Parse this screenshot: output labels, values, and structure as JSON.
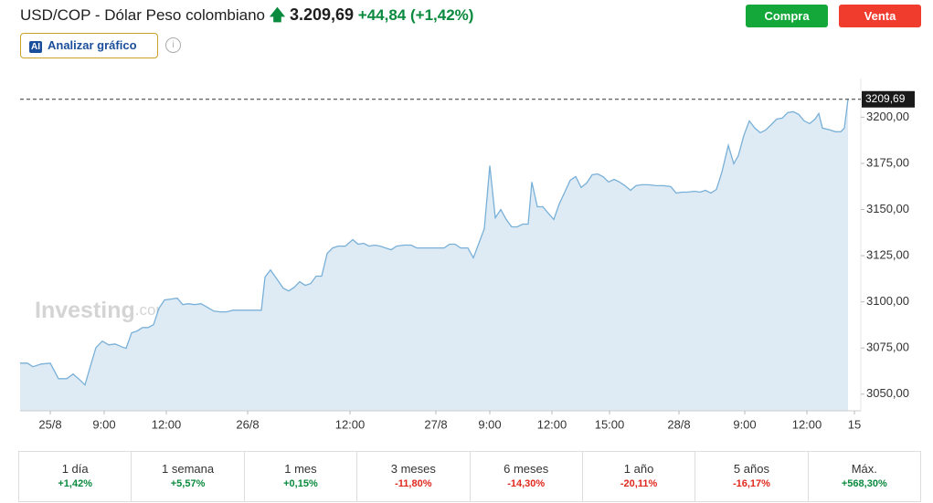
{
  "header": {
    "title": "USD/COP - Dólar Peso colombiano",
    "price": "3.209,69",
    "change": "+44,84",
    "change_pct": "(+1,42%)",
    "buy": "Compra",
    "sell": "Venta",
    "ai_icon": "AI",
    "analyze": "Analizar gráfico",
    "info": "i"
  },
  "chart_data": {
    "type": "area",
    "color": "#79b0d8",
    "fill": "#deebf5",
    "watermark": [
      "Investing",
      ".com"
    ],
    "current_price": {
      "value": 3209.69,
      "label": "3209,69"
    },
    "xlim": [
      0,
      92
    ],
    "xticks": [
      {
        "value": 3.3,
        "label": "25/8"
      },
      {
        "value": 9.2,
        "label": "9:00"
      },
      {
        "value": 16.0,
        "label": "12:00"
      },
      {
        "value": 24.9,
        "label": "26/8"
      },
      {
        "value": 36.1,
        "label": "12:00"
      },
      {
        "value": 45.5,
        "label": "27/8"
      },
      {
        "value": 51.4,
        "label": "9:00"
      },
      {
        "value": 58.2,
        "label": "12:00"
      },
      {
        "value": 64.5,
        "label": "15:00"
      },
      {
        "value": 72.1,
        "label": "28/8"
      },
      {
        "value": 79.3,
        "label": "9:00"
      },
      {
        "value": 86.1,
        "label": "12:00"
      },
      {
        "value": 91.3,
        "label": "15"
      }
    ],
    "ylim": [
      3041,
      3216
    ],
    "yticks": [
      {
        "value": 3050,
        "label": "3050,00"
      },
      {
        "value": 3075,
        "label": "3075,00"
      },
      {
        "value": 3100,
        "label": "3100,00"
      },
      {
        "value": 3125,
        "label": "3125,00"
      },
      {
        "value": 3150,
        "label": "3150,00"
      },
      {
        "value": 3175,
        "label": "3175,00"
      },
      {
        "value": 3200,
        "label": "3200,00"
      }
    ],
    "x": [
      0,
      0.8,
      1.4,
      2.3,
      3.3,
      4.2,
      5.1,
      5.8,
      6.5,
      7.1,
      7.7,
      8.3,
      9,
      9.7,
      10.4,
      11.1,
      11.6,
      12.2,
      12.8,
      13.4,
      14,
      14.6,
      15.2,
      15.8,
      16.5,
      17.2,
      17.8,
      18.4,
      19.1,
      19.8,
      20.5,
      21.2,
      21.9,
      22.6,
      23.3,
      24,
      24.8,
      25.6,
      26.4,
      26.8,
      27.4,
      28.1,
      28.8,
      29.4,
      30,
      30.6,
      31.2,
      31.8,
      32.4,
      33,
      33.6,
      34.2,
      34.8,
      35.6,
      36.4,
      37,
      37.6,
      38.2,
      38.8,
      39.4,
      40,
      40.6,
      41.2,
      42,
      42.8,
      43.4,
      44.2,
      45,
      45.8,
      46.4,
      47,
      47.6,
      48.2,
      49,
      49.6,
      50.2,
      50.8,
      51.4,
      52,
      52.6,
      53.2,
      53.8,
      54.4,
      55,
      55.6,
      56,
      56.6,
      57.2,
      57.8,
      58.4,
      59,
      59.6,
      60.2,
      60.8,
      61.4,
      62,
      62.6,
      63.2,
      63.8,
      64.4,
      65,
      65.6,
      66.2,
      66.8,
      67.4,
      68,
      68.8,
      69.6,
      70.4,
      71.2,
      71.8,
      72.4,
      73,
      73.8,
      74.4,
      75,
      75.6,
      76.2,
      76.8,
      77.5,
      78.1,
      78.6,
      79.2,
      79.8,
      80.4,
      81,
      81.6,
      82.2,
      82.8,
      83.4,
      84,
      84.6,
      85.2,
      85.8,
      86.4,
      87,
      87.4,
      87.8,
      88.6,
      89.2,
      89.8,
      90.2,
      90.6
    ],
    "series": [
      {
        "name": "USD/COP",
        "values": [
          3066.8,
          3066.8,
          3064.9,
          3066.3,
          3066.8,
          3058.4,
          3058.4,
          3060.9,
          3057.9,
          3055.0,
          3065.3,
          3075.2,
          3078.7,
          3076.7,
          3077.2,
          3075.7,
          3074.8,
          3083.2,
          3084.2,
          3086.1,
          3086.1,
          3087.6,
          3096.5,
          3101.0,
          3101.5,
          3102.0,
          3098.5,
          3099.0,
          3098.5,
          3099.0,
          3097.0,
          3095.0,
          3094.6,
          3094.6,
          3095.5,
          3095.5,
          3095.5,
          3095.5,
          3095.5,
          3113.4,
          3117.3,
          3112.4,
          3107.4,
          3105.9,
          3107.9,
          3110.9,
          3108.9,
          3109.9,
          3113.9,
          3113.9,
          3126.2,
          3129.2,
          3130.2,
          3130.2,
          3133.7,
          3131.2,
          3131.7,
          3130.2,
          3130.7,
          3130.2,
          3129.2,
          3128.2,
          3130.2,
          3130.7,
          3130.7,
          3129.2,
          3129.2,
          3129.2,
          3129.2,
          3129.2,
          3131.2,
          3131.2,
          3129.2,
          3129.2,
          3123.8,
          3131.7,
          3139.6,
          3173.8,
          3145.5,
          3150.0,
          3144.6,
          3140.6,
          3140.6,
          3142.1,
          3142.1,
          3164.9,
          3151.5,
          3151.5,
          3148.0,
          3144.6,
          3153.0,
          3159.4,
          3165.8,
          3167.8,
          3161.9,
          3164.4,
          3168.8,
          3169.3,
          3167.8,
          3164.9,
          3166.3,
          3164.9,
          3162.9,
          3160.4,
          3162.9,
          3163.4,
          3163.4,
          3162.9,
          3162.9,
          3162.4,
          3158.9,
          3159.4,
          3159.4,
          3159.9,
          3159.4,
          3160.4,
          3158.9,
          3160.9,
          3170.3,
          3184.7,
          3174.8,
          3179.2,
          3190.1,
          3198.0,
          3194.1,
          3191.6,
          3193.1,
          3196.0,
          3199.0,
          3199.5,
          3202.5,
          3203.0,
          3201.5,
          3198.0,
          3196.5,
          3199.0,
          3202.0,
          3194.1,
          3193.1,
          3192.1,
          3192.1,
          3194.1,
          3209.69
        ]
      }
    ]
  },
  "performance": [
    {
      "period": "1 día",
      "change": "+1,42%"
    },
    {
      "period": "1 semana",
      "change": "+5,57%"
    },
    {
      "period": "1 mes",
      "change": "+0,15%"
    },
    {
      "period": "3 meses",
      "change": "-11,80%"
    },
    {
      "period": "6 meses",
      "change": "-14,30%"
    },
    {
      "period": "1 año",
      "change": "-20,11%"
    },
    {
      "period": "5 años",
      "change": "-16,17%"
    },
    {
      "period": "Máx.",
      "change": "+568,30%"
    }
  ]
}
